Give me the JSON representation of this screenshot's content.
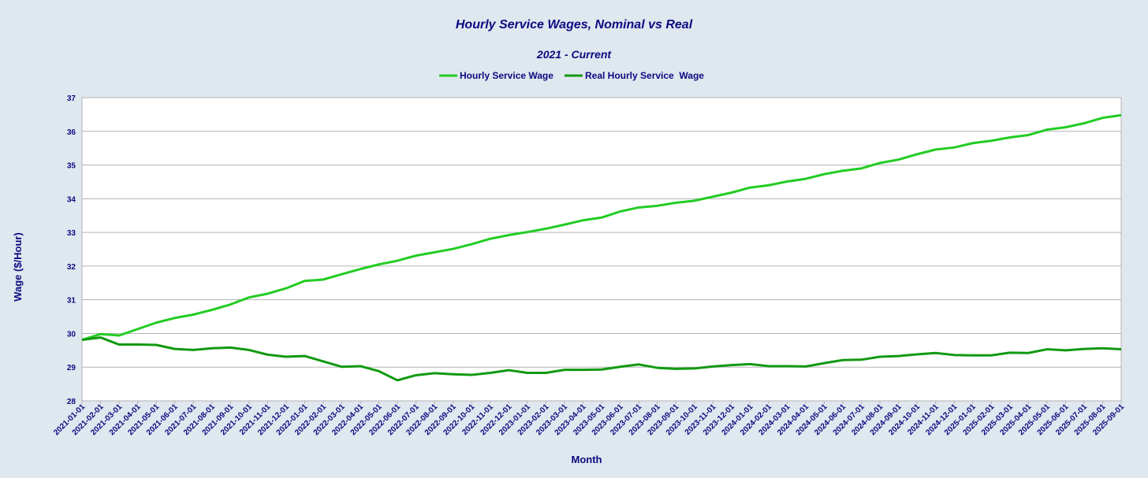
{
  "chart_data": {
    "type": "line",
    "title": "Hourly Service Wages, Nominal vs Real",
    "subtitle": "2021 - Current",
    "xlabel": "Month",
    "ylabel": "Wage ($/Hour)",
    "ylim": [
      28,
      37
    ],
    "yticks": [
      28,
      29,
      30,
      31,
      32,
      33,
      34,
      35,
      36,
      37
    ],
    "grid": true,
    "legend_position": "top-center",
    "x": [
      "2021-01-01",
      "2021-02-01",
      "2021-03-01",
      "2021-04-01",
      "2021-05-01",
      "2021-06-01",
      "2021-07-01",
      "2021-08-01",
      "2021-09-01",
      "2021-10-01",
      "2021-11-01",
      "2021-12-01",
      "2022-01-01",
      "2022-02-01",
      "2022-03-01",
      "2022-04-01",
      "2022-05-01",
      "2022-06-01",
      "2022-07-01",
      "2022-08-01",
      "2022-09-01",
      "2022-10-01",
      "2022-11-01",
      "2022-12-01",
      "2023-01-01",
      "2023-02-01",
      "2023-03-01",
      "2023-04-01",
      "2023-05-01",
      "2023-06-01",
      "2023-07-01",
      "2023-08-01",
      "2023-09-01",
      "2023-10-01",
      "2023-11-01",
      "2023-12-01",
      "2024-01-01",
      "2024-02-01",
      "2024-03-01",
      "2024-04-01",
      "2024-05-01",
      "2024-06-01",
      "2024-07-01",
      "2024-08-01",
      "2024-09-01",
      "2024-10-01",
      "2024-11-01",
      "2024-12-01",
      "2025-01-01",
      "2025-02-01",
      "2025-03-01",
      "2025-04-01",
      "2025-05-01",
      "2025-06-01",
      "2025-07-01",
      "2025-08-01",
      "2025-09-01"
    ],
    "series": [
      {
        "name": "Hourly Service Wage",
        "color": "#22cc22",
        "values": [
          29.81,
          29.98,
          29.94,
          30.13,
          30.32,
          30.46,
          30.56,
          30.7,
          30.86,
          31.07,
          31.18,
          31.34,
          31.56,
          31.6,
          31.76,
          31.91,
          32.05,
          32.16,
          32.31,
          32.41,
          32.51,
          32.65,
          32.81,
          32.92,
          33.01,
          33.11,
          33.23,
          33.36,
          33.44,
          33.62,
          33.74,
          33.79,
          33.88,
          33.94,
          34.06,
          34.18,
          34.33,
          34.4,
          34.51,
          34.59,
          34.73,
          34.83,
          34.9,
          35.06,
          35.16,
          35.32,
          35.46,
          35.52,
          35.65,
          35.72,
          35.82,
          35.89,
          36.05,
          36.12,
          36.24,
          36.4,
          36.48
        ]
      },
      {
        "name": "Real Hourly Service  Wage",
        "color": "#119911",
        "values": [
          29.81,
          29.88,
          29.67,
          29.67,
          29.66,
          29.54,
          29.51,
          29.56,
          29.58,
          29.51,
          29.37,
          29.31,
          29.33,
          29.17,
          29.01,
          29.03,
          28.88,
          28.61,
          28.76,
          28.82,
          28.79,
          28.77,
          28.83,
          28.91,
          28.83,
          28.83,
          28.92,
          28.92,
          28.93,
          29.01,
          29.08,
          28.98,
          28.95,
          28.96,
          29.02,
          29.06,
          29.09,
          29.03,
          29.03,
          29.02,
          29.12,
          29.21,
          29.22,
          29.31,
          29.33,
          29.38,
          29.42,
          29.36,
          29.35,
          29.35,
          29.43,
          29.42,
          29.53,
          29.5,
          29.54,
          29.56,
          29.53
        ]
      }
    ]
  }
}
